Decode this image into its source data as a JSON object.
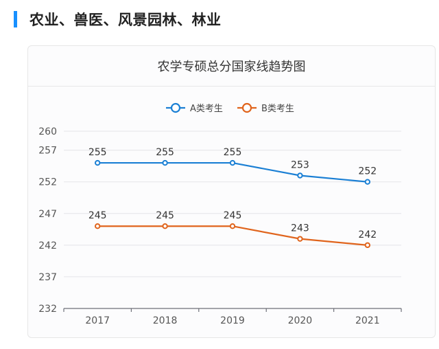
{
  "section": {
    "title": "农业、兽医、风景园林、林业",
    "accent_color": "#1890ff"
  },
  "chart_data": {
    "type": "line",
    "title": "农学专硕总分国家线趋势图",
    "xlabel": "",
    "ylabel": "",
    "categories": [
      "2017",
      "2018",
      "2019",
      "2020",
      "2021"
    ],
    "series": [
      {
        "name": "A类考生",
        "color": "#1a7fd4",
        "values": [
          255,
          255,
          255,
          253,
          252
        ]
      },
      {
        "name": "B类考生",
        "color": "#e0641c",
        "values": [
          245,
          245,
          245,
          243,
          242
        ]
      }
    ],
    "y_ticks": [
      232,
      237,
      242,
      247,
      252,
      257,
      260
    ],
    "ylim": [
      232,
      260
    ],
    "grid": true,
    "legend": "top-center",
    "data_labels": true
  }
}
